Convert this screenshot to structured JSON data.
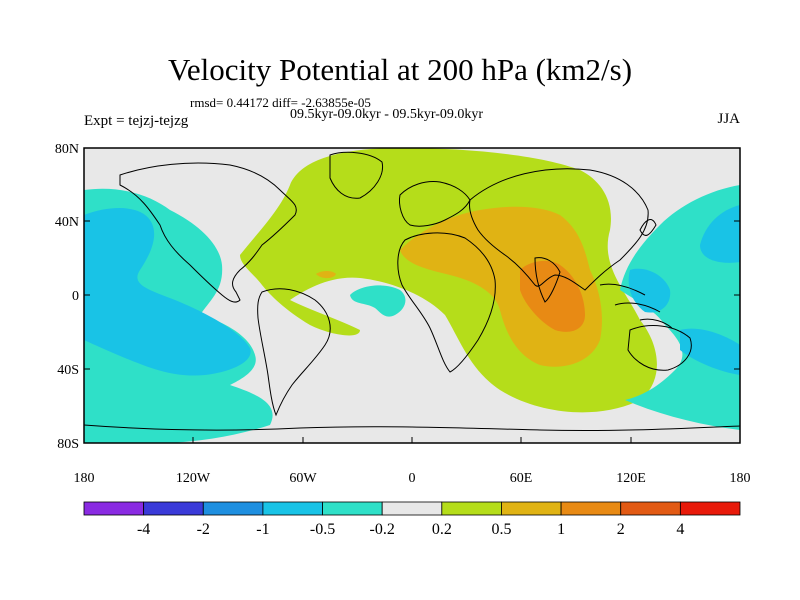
{
  "figure": {
    "title": "Velocity Potential at 200 hPa (km2/s)",
    "stats": "rmsd= 0.44172 diff= -2.63855e-05",
    "period": "09.5kyr-09.0kyr - 09.5kyr-09.0kyr",
    "experiment": "Expt = tejzj-tejzg",
    "season": "JJA"
  },
  "axes": {
    "lat_ticks": [
      "80N",
      "40N",
      "0",
      "40S",
      "80S"
    ],
    "lon_ticks": [
      "180",
      "120W",
      "60W",
      "0",
      "60E",
      "120E",
      "180"
    ]
  },
  "colorbar": {
    "levels": [
      "-4",
      "-2",
      "-1",
      "-0.5",
      "-0.2",
      "0.2",
      "0.5",
      "1",
      "2",
      "4"
    ],
    "colors": [
      "#8a2be2",
      "#3a3ad8",
      "#1e8fe0",
      "#19c3e6",
      "#2fe0c8",
      "#e8e8e8",
      "#b5dd1a",
      "#e0b314",
      "#e88a14",
      "#e25a14",
      "#e81a0a"
    ]
  },
  "map_colors": {
    "land_outline": "#000000",
    "ocean_background": "#e8e8e8"
  }
}
